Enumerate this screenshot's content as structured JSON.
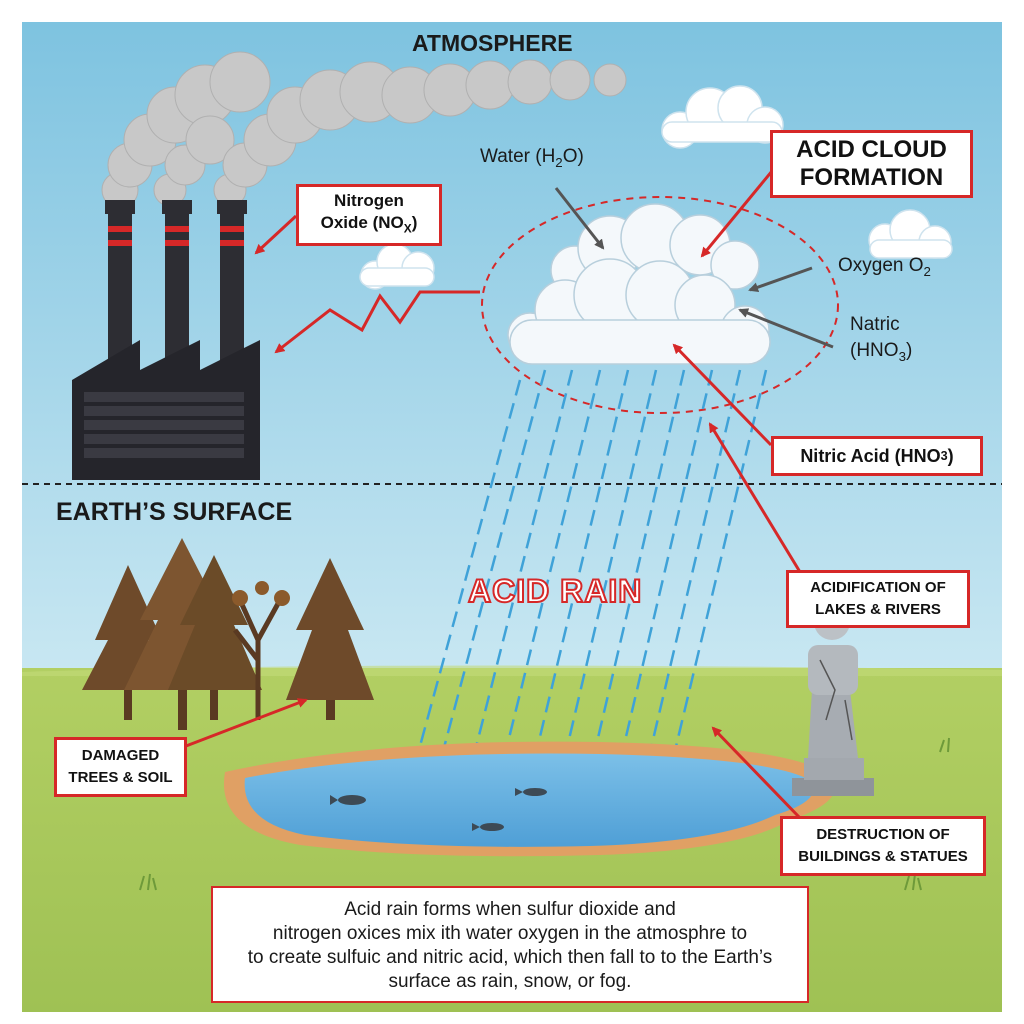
{
  "sections": {
    "atmosphere": "ATMOSPHERE",
    "earth_surface": "EARTH’S SURFACE",
    "acid_rain": "ACID RAIN"
  },
  "labels": {
    "water": {
      "text": "Water (H",
      "sub": "2",
      "tail": "O)"
    },
    "nitrogen_oxide": {
      "line1": "Nitrogen",
      "line2": "Oxide (NO",
      "sub": "X",
      "tail": ")"
    },
    "acid_cloud": {
      "line1": "ACID CLOUD",
      "line2": "FORMATION"
    },
    "oxygen": {
      "text": "Oxygen O",
      "sub": "2"
    },
    "natric": {
      "line1": "Natric",
      "line2": "(HNO",
      "sub": "3",
      "tail": ")"
    },
    "nitric_acid": {
      "text": "Nitric Acid (HNO",
      "sub": "3",
      "tail": ")"
    },
    "acidification": {
      "line1": "ACIDIFICATION OF",
      "line2": "LAKES & RIVERS"
    },
    "damaged": {
      "line1": "DAMAGED",
      "line2": "TREES & SOIL"
    },
    "destruction": {
      "line1": "DESTRUCTION OF",
      "line2": "BUILDINGS & STATUES"
    }
  },
  "caption": {
    "line1": "Acid rain forms when sulfur dioxide and",
    "line2": "nitrogen oxices mix ith water oxygen in the atmosphre to",
    "line3": "to create sulfuic and nitric acid, which then fall to to the Earth’s",
    "line4": "surface as rain, snow, or fog."
  },
  "colors": {
    "sky_top": "#7ec3e0",
    "sky_bottom": "#c6e6f2",
    "grass": "#a9c85a",
    "accent_red": "#d62828",
    "rain": "#3fa2d8",
    "water": "#5aa9dc"
  }
}
